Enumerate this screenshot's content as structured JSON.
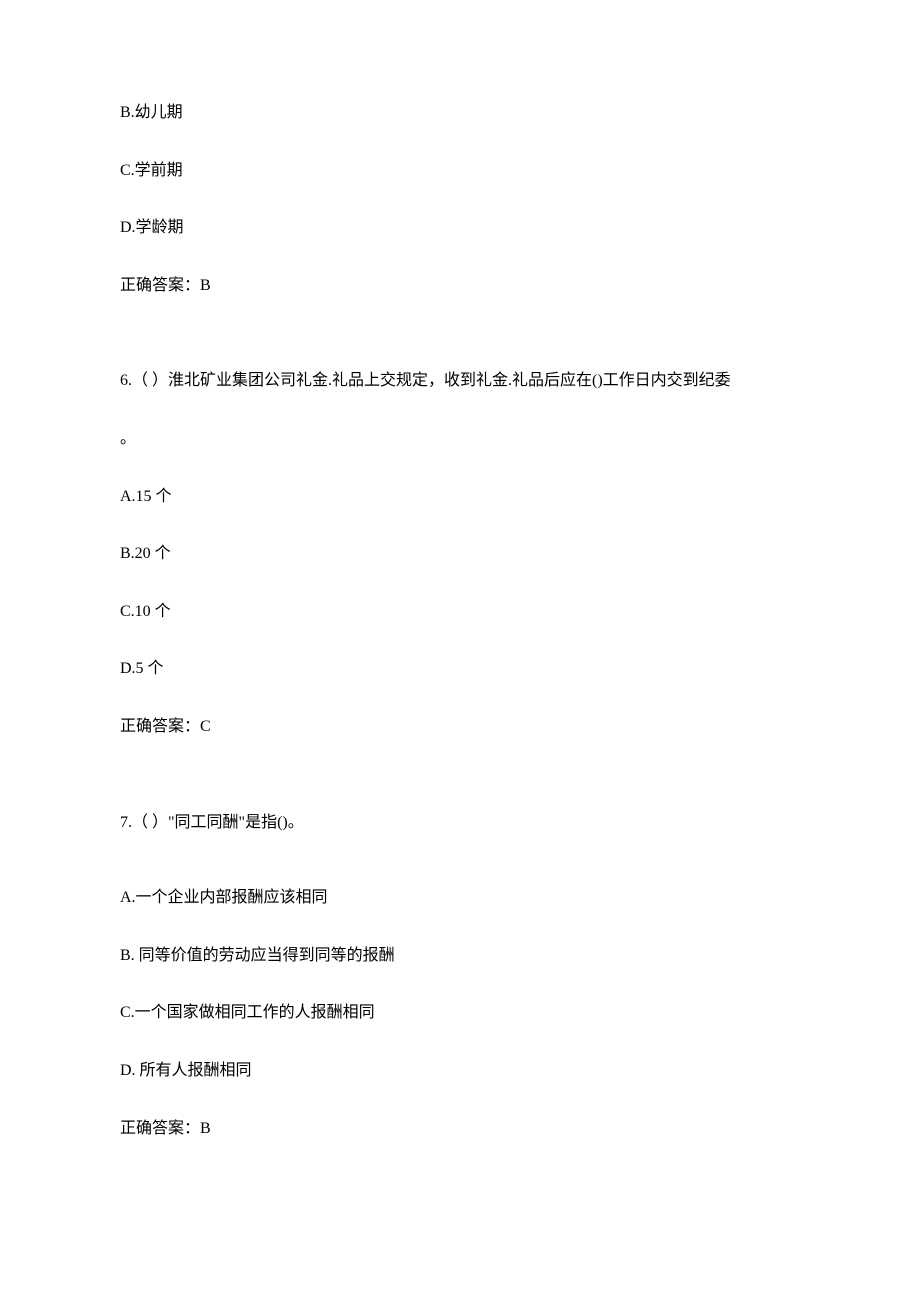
{
  "q5": {
    "optB": "B.幼儿期",
    "optC": "C.学前期",
    "optD": "D.学龄期",
    "answer": "正确答案：B"
  },
  "q6": {
    "stem_line1": "6.（ ）淮北矿业集团公司礼金.礼品上交规定，收到礼金.礼品后应在()工作日内交到纪委",
    "stem_line2": "。",
    "optA": "A.15 个",
    "optB": "B.20 个",
    "optC": "C.10 个",
    "optD": "D.5 个",
    "answer": "正确答案：C"
  },
  "q7": {
    "stem": "7.（ ）\"同工同酬\"是指()。",
    "optA": "A.一个企业内部报酬应该相同",
    "optB": "B.  同等价值的劳动应当得到同等的报酬",
    "optC": "C.一个国家做相同工作的人报酬相同",
    "optD": "D.  所有人报酬相同",
    "answer": "正确答案：B"
  }
}
